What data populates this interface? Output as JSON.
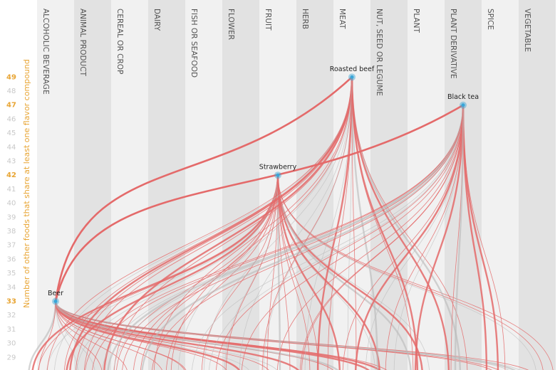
{
  "chart_data": {
    "type": "network",
    "y_label": "Number of other foods that share at least one flavor compound",
    "categories": [
      "ALCOHOLIC BEVERAGE",
      "ANIMAL PRODUCT",
      "CEREAL OR CROP",
      "DAIRY",
      "FISH OR SEAFOOD",
      "FLOWER",
      "FRUIT",
      "HERB",
      "MEAT",
      "NUT, SEED OR LEGUME",
      "PLANT",
      "PLANT DERIVATIVE",
      "SPICE",
      "VEGETABLE"
    ],
    "nodes": [
      {
        "label": "Beer",
        "category": "ALCOHOLIC BEVERAGE",
        "value": 33
      },
      {
        "label": "Strawberry",
        "category": "FRUIT",
        "value": 42
      },
      {
        "label": "Roasted beef",
        "category": "MEAT",
        "value": 49
      },
      {
        "label": "Black tea",
        "category": "PLANT DERIVATIVE",
        "value": 47
      }
    ],
    "links": [
      [
        "Beer",
        "Roasted beef"
      ],
      [
        "Beer",
        "Black tea"
      ]
    ],
    "ylim": [
      28.1,
      54.5
    ],
    "yticks": [
      29,
      30,
      31,
      32,
      33,
      34,
      35,
      36,
      37,
      38,
      39,
      40,
      41,
      42,
      43,
      44,
      45,
      46,
      47,
      48,
      49
    ],
    "node_color": "#3aa6d8",
    "link_color": "#e46a6a",
    "other_link_color": "#b9b9b9",
    "column_colors": [
      "#f1f1f1",
      "#e2e2e2"
    ]
  }
}
